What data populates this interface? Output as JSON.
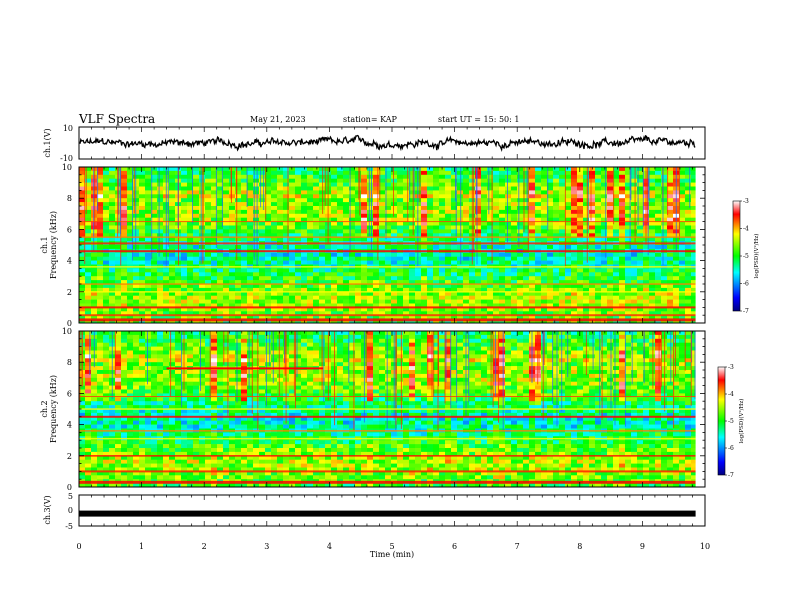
{
  "header": {
    "title": "VLF Spectra",
    "date": "May 21, 2023",
    "station": "station= KAP",
    "start": "start  UT =   15: 50: 1"
  },
  "chart_data": [
    {
      "type": "line",
      "panel": "ch1-waveform",
      "ylabel": "ch.1(V)",
      "ylim": [
        -10,
        10
      ],
      "ytick_labels": [
        "10",
        "-10"
      ]
    },
    {
      "type": "heatmap",
      "panel": "ch1-spectrogram",
      "ylabel_top": "ch.1",
      "ylabel": "Frequency  (kHz)",
      "ylim": [
        0,
        10
      ],
      "ytick_labels": [
        "0",
        "2",
        "4",
        "6",
        "8",
        "10"
      ],
      "colorbar": {
        "label": "log(PSD)(V²/Hz)",
        "range": [
          -7,
          -3
        ],
        "tick_labels": [
          "-3",
          "-4",
          "-5",
          "-6",
          "-7"
        ]
      }
    },
    {
      "type": "heatmap",
      "panel": "ch2-spectrogram",
      "ylabel_top": "ch.2",
      "ylabel": "Frequency  (kHz)",
      "ylim": [
        0,
        10
      ],
      "ytick_labels": [
        "0",
        "2",
        "4",
        "6",
        "8",
        "10"
      ],
      "colorbar": {
        "label": "log(PSD)(V²/Hz)",
        "range": [
          -7,
          -3
        ],
        "tick_labels": [
          "-3",
          "-4",
          "-5",
          "-6",
          "-7"
        ]
      }
    },
    {
      "type": "line",
      "panel": "ch3-waveform",
      "ylabel": "ch.3(V)",
      "ylim": [
        -5,
        5
      ],
      "ytick_labels": [
        "5",
        "0",
        "-5"
      ],
      "value": -1
    }
  ],
  "xaxis": {
    "label": "Time  (min)",
    "xlim": [
      0,
      10
    ],
    "tick_labels": [
      "0",
      "1",
      "2",
      "3",
      "4",
      "5",
      "6",
      "7",
      "8",
      "9",
      "10"
    ],
    "data_end": 9.85
  },
  "colors": {
    "colormap": [
      "#000080",
      "#0000ff",
      "#00ffff",
      "#00ff00",
      "#ffff00",
      "#ff0000",
      "#ffffff"
    ],
    "trace": "#000000"
  }
}
